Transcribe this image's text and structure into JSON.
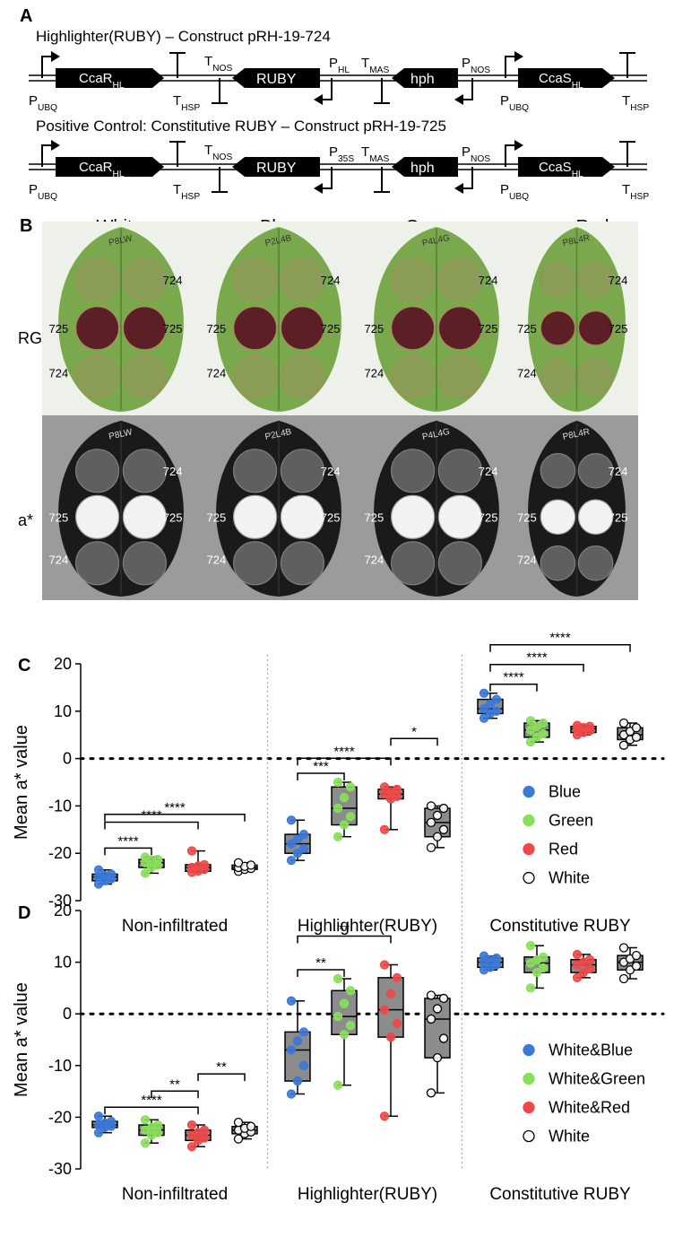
{
  "panel_a": {
    "letter": "A",
    "construct1_title": "Highlighter(RUBY) – Construct pRH-19-724",
    "construct2_title": "Positive Control: Constitutive RUBY – Construct pRH-19-725",
    "genes": {
      "ccar": "CcaR",
      "ccar_sub": "HL",
      "ruby": "RUBY",
      "hph": "hph",
      "ccas": "CcaS",
      "ccas_sub": "HL"
    },
    "elements": {
      "p": "P",
      "t": "T",
      "ubq": "UBQ",
      "hsp": "HSP",
      "nos": "NOS",
      "hl": "HL",
      "mas": "MAS",
      "p35s": "35S"
    }
  },
  "panel_b": {
    "letter": "B",
    "columns": [
      "White",
      "Blue",
      "Green",
      "Red"
    ],
    "rows": [
      "RGB",
      "a*"
    ],
    "spot_labels": [
      "724",
      "725",
      "725",
      "724"
    ],
    "leaf_marks": [
      "P8LW",
      "P2L4B",
      "P4L4G",
      "P8L4R"
    ]
  },
  "panel_c": {
    "letter": "C",
    "ylabel": "Mean a* value",
    "chart_data": {
      "type": "box",
      "title": "",
      "ylabel": "Mean a* value",
      "ylim": [
        -30,
        20
      ],
      "yticks": [
        20,
        10,
        0,
        -10,
        -20,
        -30
      ],
      "groups": [
        "Non-infiltrated",
        "Highlighter(RUBY)",
        "Constitutive RUBY"
      ],
      "series": [
        {
          "name": "Blue",
          "color": "#3a78d8",
          "boxes": [
            {
              "min": -26.5,
              "q1": -25.8,
              "median": -25.0,
              "q3": -24.4,
              "max": -23.5
            },
            {
              "min": -21.5,
              "q1": -20.0,
              "median": -18.0,
              "q3": -16.0,
              "max": -13.0
            },
            {
              "min": 8.5,
              "q1": 9.5,
              "median": 10.5,
              "q3": 12.5,
              "max": 13.8
            }
          ]
        },
        {
          "name": "Green",
          "color": "#88e05a",
          "boxes": [
            {
              "min": -24.2,
              "q1": -23.0,
              "median": -22.0,
              "q3": -21.3,
              "max": -20.8
            },
            {
              "min": -16.5,
              "q1": -14.0,
              "median": -10.5,
              "q3": -6.0,
              "max": -5.0
            },
            {
              "min": 3.5,
              "q1": 4.5,
              "median": 6.0,
              "q3": 7.5,
              "max": 8.0
            }
          ]
        },
        {
          "name": "Red",
          "color": "#ee4848",
          "boxes": [
            {
              "min": -24.0,
              "q1": -23.8,
              "median": -23.0,
              "q3": -22.4,
              "max": -19.5
            },
            {
              "min": -15.0,
              "q1": -8.5,
              "median": -7.5,
              "q3": -6.5,
              "max": -6.0
            },
            {
              "min": 5.0,
              "q1": 5.5,
              "median": 6.3,
              "q3": 6.8,
              "max": 7.0
            }
          ]
        },
        {
          "name": "White",
          "color": "#ffffff",
          "boxes": [
            {
              "min": -23.8,
              "q1": -23.4,
              "median": -23.0,
              "q3": -22.5,
              "max": -22.0
            },
            {
              "min": -18.8,
              "q1": -16.5,
              "median": -13.5,
              "q3": -10.5,
              "max": -10.0
            },
            {
              "min": 2.8,
              "q1": 4.0,
              "median": 5.0,
              "q3": 6.5,
              "max": 7.5
            }
          ]
        }
      ],
      "significance": [
        {
          "group": 0,
          "from": 0,
          "to": 1,
          "label": "****"
        },
        {
          "group": 0,
          "from": 0,
          "to": 2,
          "label": "****"
        },
        {
          "group": 0,
          "from": 0,
          "to": 3,
          "label": "****"
        },
        {
          "group": 1,
          "from": 0,
          "to": 1,
          "label": "***"
        },
        {
          "group": 1,
          "from": 0,
          "to": 2,
          "label": "****"
        },
        {
          "group": 1,
          "from": 2,
          "to": 3,
          "label": "*"
        },
        {
          "group": 2,
          "from": 0,
          "to": 1,
          "label": "****"
        },
        {
          "group": 2,
          "from": 0,
          "to": 2,
          "label": "****"
        },
        {
          "group": 2,
          "from": 0,
          "to": 3,
          "label": "****"
        }
      ],
      "legend": [
        "Blue",
        "Green",
        "Red",
        "White"
      ],
      "legend_position": "right-middle"
    }
  },
  "panel_d": {
    "letter": "D",
    "ylabel": "Mean a* value",
    "chart_data": {
      "type": "box",
      "title": "",
      "ylabel": "Mean a* value",
      "ylim": [
        -30,
        20
      ],
      "yticks": [
        20,
        10,
        0,
        -10,
        -20,
        -30
      ],
      "groups": [
        "Non-infiltrated",
        "Highlighter(RUBY)",
        "Constitutive RUBY"
      ],
      "series": [
        {
          "name": "White&Blue",
          "color": "#3a78d8",
          "boxes": [
            {
              "min": -23.0,
              "q1": -22.0,
              "median": -21.5,
              "q3": -20.8,
              "max": -19.8
            },
            {
              "min": -15.5,
              "q1": -13.0,
              "median": -7.0,
              "q3": -3.5,
              "max": 2.5
            },
            {
              "min": 8.5,
              "q1": 9.0,
              "median": 10.0,
              "q3": 10.8,
              "max": 11.2
            }
          ]
        },
        {
          "name": "White&Green",
          "color": "#88e05a",
          "boxes": [
            {
              "min": -25.0,
              "q1": -23.5,
              "median": -22.5,
              "q3": -21.5,
              "max": -20.5
            },
            {
              "min": -13.8,
              "q1": -4.0,
              "median": -0.5,
              "q3": 4.5,
              "max": 6.8
            },
            {
              "min": 5.0,
              "q1": 8.0,
              "median": 9.8,
              "q3": 11.0,
              "max": 13.2
            }
          ]
        },
        {
          "name": "White&Red",
          "color": "#ee4848",
          "boxes": [
            {
              "min": -25.7,
              "q1": -24.5,
              "median": -23.5,
              "q3": -22.5,
              "max": -21.5
            },
            {
              "min": -19.8,
              "q1": -4.5,
              "median": 0.8,
              "q3": 7.0,
              "max": 9.5
            },
            {
              "min": 7.0,
              "q1": 8.0,
              "median": 9.5,
              "q3": 10.5,
              "max": 11.5
            }
          ]
        },
        {
          "name": "White",
          "color": "#ffffff",
          "boxes": [
            {
              "min": -24.2,
              "q1": -23.2,
              "median": -22.5,
              "q3": -21.8,
              "max": -21.0
            },
            {
              "min": -15.3,
              "q1": -8.5,
              "median": -1.0,
              "q3": 3.0,
              "max": 3.6
            },
            {
              "min": 6.8,
              "q1": 8.5,
              "median": 10.0,
              "q3": 11.3,
              "max": 12.8
            }
          ]
        }
      ],
      "significance": [
        {
          "group": 0,
          "from": 0,
          "to": 2,
          "label": "****"
        },
        {
          "group": 0,
          "from": 1,
          "to": 2,
          "label": "**"
        },
        {
          "group": 0,
          "from": 2,
          "to": 3,
          "label": "**"
        },
        {
          "group": 1,
          "from": 0,
          "to": 1,
          "label": "**"
        },
        {
          "group": 1,
          "from": 0,
          "to": 2,
          "label": "**"
        }
      ],
      "legend": [
        "White&Blue",
        "White&Green",
        "White&Red",
        "White"
      ],
      "legend_position": "right-middle"
    }
  }
}
